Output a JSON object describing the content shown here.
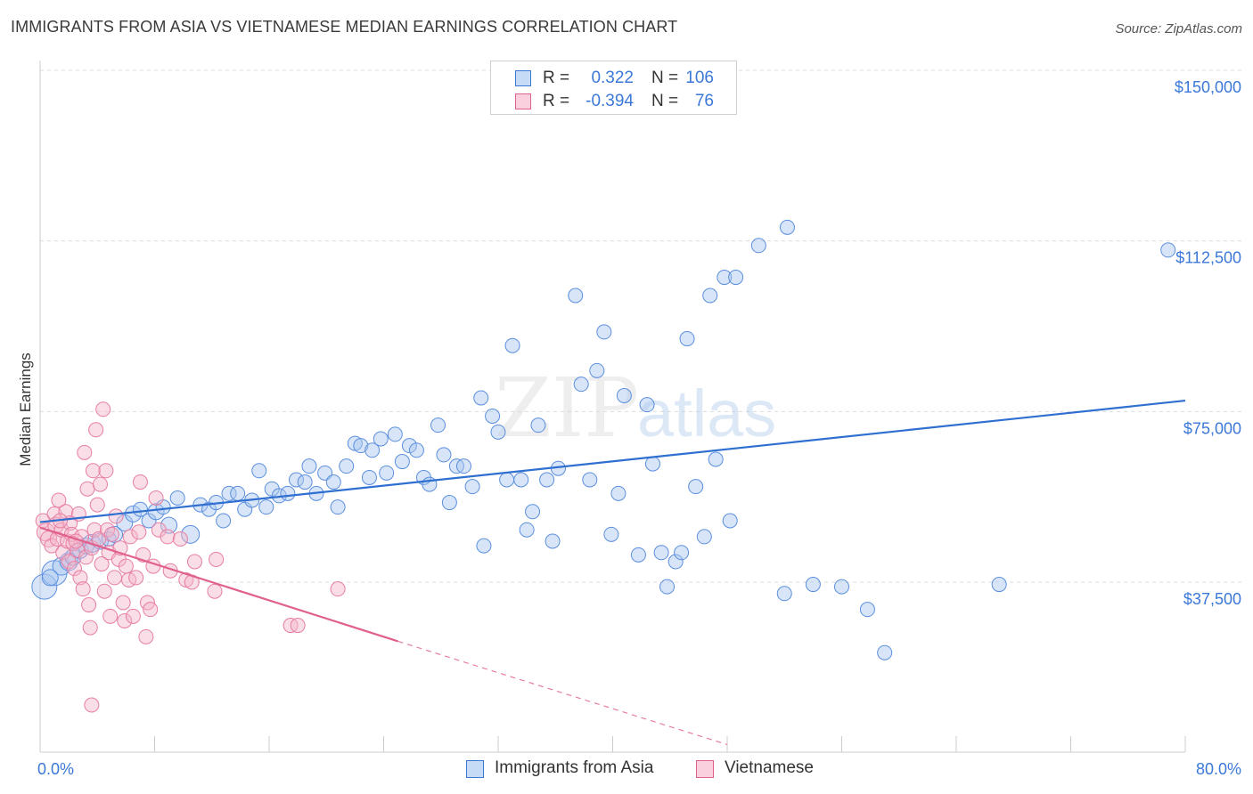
{
  "title": "IMMIGRANTS FROM ASIA VS VIETNAMESE MEDIAN EARNINGS CORRELATION CHART",
  "source": "Source: ZipAtlas.com",
  "watermark": {
    "zip": "ZIP",
    "atlas": "atlas"
  },
  "colors": {
    "blue": "#3b78d8",
    "blue_fill": "#a8c6f0",
    "pink": "#e0608e",
    "pink_fill": "#f5b5c9",
    "grid": "#dddddd",
    "axis_text": "#3b78d8"
  },
  "legend_top": {
    "rows": [
      {
        "series": "Immigrants from Asia",
        "r_label": "R =",
        "r_value": "0.322",
        "n_label": "N =",
        "n_value": "106"
      },
      {
        "series": "Vietnamese",
        "r_label": "R =",
        "r_value": "-0.394",
        "n_label": "N =",
        "n_value": "76"
      }
    ]
  },
  "legend_bottom": [
    "Immigrants from Asia",
    "Vietnamese"
  ],
  "chart_data": {
    "type": "scatter",
    "ylabel": "Median Earnings",
    "xlabel": "",
    "xlim": [
      0,
      80
    ],
    "ylim": [
      0,
      150000
    ],
    "x_tick_labels": [
      "0.0%",
      "80.0%"
    ],
    "y_ticks": [
      37500,
      75000,
      112500,
      150000
    ],
    "y_tick_labels": [
      "$37,500",
      "$75,000",
      "$112,500",
      "$150,000"
    ],
    "grid": true,
    "legend_placement": "top-center and bottom",
    "series": [
      {
        "name": "Immigrants from Asia",
        "color": "#3b78d8",
        "trend": {
          "x": [
            0,
            80
          ],
          "y": [
            50700,
            77400
          ],
          "style": "solid"
        },
        "points": [
          [
            0.3,
            36500,
            14
          ],
          [
            1.0,
            39500,
            14
          ],
          [
            1.5,
            41000,
            10
          ],
          [
            2.0,
            42000,
            10
          ],
          [
            2.3,
            43000,
            9
          ],
          [
            2.8,
            44500,
            9
          ],
          [
            3.2,
            45500,
            9
          ],
          [
            3.6,
            46000,
            10
          ],
          [
            4.2,
            46500,
            9
          ],
          [
            4.8,
            47000,
            8
          ],
          [
            5.2,
            48000,
            9
          ],
          [
            5.9,
            50500,
            9
          ],
          [
            6.5,
            52500,
            9
          ],
          [
            7.0,
            53500,
            8
          ],
          [
            7.6,
            51000,
            8
          ],
          [
            8.1,
            53000,
            9
          ],
          [
            8.6,
            54000,
            8
          ],
          [
            9.0,
            50000,
            9
          ],
          [
            9.6,
            56000,
            8
          ],
          [
            10.5,
            48000,
            10
          ],
          [
            11.2,
            54500,
            8
          ],
          [
            11.8,
            53500,
            8
          ],
          [
            12.3,
            55000,
            8
          ],
          [
            12.8,
            51000,
            8
          ],
          [
            13.2,
            57000,
            8
          ],
          [
            13.8,
            57000,
            8
          ],
          [
            14.3,
            53500,
            8
          ],
          [
            14.8,
            55500,
            8
          ],
          [
            15.3,
            62000,
            8
          ],
          [
            15.8,
            54000,
            8
          ],
          [
            16.2,
            58000,
            8
          ],
          [
            16.7,
            56500,
            8
          ],
          [
            17.3,
            57000,
            8
          ],
          [
            17.9,
            60000,
            8
          ],
          [
            18.5,
            59500,
            8
          ],
          [
            18.8,
            63000,
            8
          ],
          [
            19.3,
            57000,
            8
          ],
          [
            19.9,
            61500,
            8
          ],
          [
            20.5,
            59500,
            8
          ],
          [
            20.8,
            54000,
            8
          ],
          [
            21.4,
            63000,
            8
          ],
          [
            22.0,
            68000,
            8
          ],
          [
            22.4,
            67500,
            8
          ],
          [
            23.0,
            60500,
            8
          ],
          [
            23.2,
            66500,
            8
          ],
          [
            23.8,
            69000,
            8
          ],
          [
            24.2,
            61500,
            8
          ],
          [
            24.8,
            70000,
            8
          ],
          [
            25.3,
            64000,
            8
          ],
          [
            25.8,
            67500,
            8
          ],
          [
            26.3,
            66500,
            8
          ],
          [
            26.8,
            60500,
            8
          ],
          [
            27.2,
            59000,
            8
          ],
          [
            27.8,
            72000,
            8
          ],
          [
            28.2,
            65500,
            8
          ],
          [
            28.6,
            55000,
            8
          ],
          [
            29.1,
            63000,
            8
          ],
          [
            29.6,
            63000,
            8
          ],
          [
            30.2,
            58500,
            8
          ],
          [
            30.8,
            78000,
            8
          ],
          [
            31.0,
            45500,
            8
          ],
          [
            31.6,
            74000,
            8
          ],
          [
            32.0,
            70500,
            8
          ],
          [
            32.6,
            60000,
            8
          ],
          [
            33.0,
            89500,
            8
          ],
          [
            33.6,
            60000,
            8
          ],
          [
            34.0,
            49000,
            8
          ],
          [
            34.4,
            53000,
            8
          ],
          [
            34.8,
            72000,
            8
          ],
          [
            35.4,
            60000,
            8
          ],
          [
            35.8,
            46500,
            8
          ],
          [
            36.2,
            62500,
            8
          ],
          [
            37.4,
            100500,
            8
          ],
          [
            37.8,
            81000,
            8
          ],
          [
            38.4,
            60000,
            8
          ],
          [
            38.9,
            84000,
            8
          ],
          [
            39.4,
            92500,
            8
          ],
          [
            39.9,
            48000,
            8
          ],
          [
            40.4,
            57000,
            8
          ],
          [
            40.8,
            78500,
            8
          ],
          [
            41.8,
            43500,
            8
          ],
          [
            42.4,
            76500,
            8
          ],
          [
            42.8,
            63500,
            8
          ],
          [
            43.4,
            44000,
            8
          ],
          [
            43.8,
            36500,
            8
          ],
          [
            44.4,
            42000,
            8
          ],
          [
            44.8,
            44000,
            8
          ],
          [
            45.2,
            91000,
            8
          ],
          [
            45.8,
            58500,
            8
          ],
          [
            46.4,
            47500,
            8
          ],
          [
            46.8,
            100500,
            8
          ],
          [
            47.2,
            64500,
            8
          ],
          [
            47.8,
            104500,
            8
          ],
          [
            48.2,
            51000,
            8
          ],
          [
            48.6,
            104500,
            8
          ],
          [
            50.2,
            111500,
            8
          ],
          [
            52.0,
            35000,
            8
          ],
          [
            52.2,
            115500,
            8
          ],
          [
            54.0,
            37000,
            8
          ],
          [
            56.0,
            36500,
            8
          ],
          [
            57.8,
            31500,
            8
          ],
          [
            59.0,
            22000,
            8
          ],
          [
            67.0,
            37000,
            8
          ],
          [
            78.8,
            110500,
            8
          ],
          [
            0.7,
            38500,
            9
          ]
        ]
      },
      {
        "name": "Vietnamese",
        "color": "#e0608e",
        "trend": {
          "x": [
            0,
            25
          ],
          "y": [
            49500,
            24500
          ],
          "style": "solid",
          "dashed_to": {
            "x": 48,
            "y": 1800
          }
        },
        "points": [
          [
            0.2,
            51000,
            8
          ],
          [
            0.4,
            48500,
            10
          ],
          [
            0.6,
            47000,
            9
          ],
          [
            0.8,
            45500,
            8
          ],
          [
            1.0,
            52500,
            8
          ],
          [
            1.1,
            50000,
            9
          ],
          [
            1.2,
            47000,
            8
          ],
          [
            1.3,
            55500,
            8
          ],
          [
            1.5,
            49000,
            8
          ],
          [
            1.6,
            44000,
            8
          ],
          [
            1.8,
            53000,
            8
          ],
          [
            1.9,
            46500,
            8
          ],
          [
            2.0,
            42000,
            8
          ],
          [
            2.1,
            50500,
            8
          ],
          [
            2.2,
            48000,
            8
          ],
          [
            2.3,
            46000,
            8
          ],
          [
            2.4,
            40500,
            8
          ],
          [
            2.6,
            44500,
            8
          ],
          [
            2.7,
            52500,
            8
          ],
          [
            2.8,
            38500,
            8
          ],
          [
            2.9,
            47500,
            8
          ],
          [
            3.0,
            36000,
            8
          ],
          [
            3.1,
            66000,
            8
          ],
          [
            3.2,
            43000,
            8
          ],
          [
            3.3,
            58000,
            8
          ],
          [
            3.4,
            32500,
            8
          ],
          [
            3.5,
            27500,
            8
          ],
          [
            3.6,
            45000,
            8
          ],
          [
            3.7,
            62000,
            8
          ],
          [
            3.8,
            49000,
            8
          ],
          [
            3.9,
            71000,
            8
          ],
          [
            4.0,
            54500,
            8
          ],
          [
            4.1,
            47000,
            8
          ],
          [
            4.2,
            59000,
            8
          ],
          [
            4.3,
            41500,
            8
          ],
          [
            4.4,
            75500,
            8
          ],
          [
            4.5,
            35500,
            8
          ],
          [
            4.6,
            62000,
            8
          ],
          [
            4.7,
            49000,
            8
          ],
          [
            4.8,
            44000,
            8
          ],
          [
            4.9,
            30000,
            8
          ],
          [
            5.0,
            48000,
            8
          ],
          [
            5.2,
            38500,
            8
          ],
          [
            5.3,
            52000,
            8
          ],
          [
            5.5,
            42500,
            8
          ],
          [
            5.6,
            45000,
            8
          ],
          [
            5.8,
            33000,
            8
          ],
          [
            5.9,
            29000,
            8
          ],
          [
            6.0,
            41000,
            8
          ],
          [
            6.2,
            38000,
            8
          ],
          [
            6.3,
            47500,
            8
          ],
          [
            6.5,
            30000,
            8
          ],
          [
            6.7,
            38500,
            8
          ],
          [
            6.9,
            48500,
            8
          ],
          [
            7.0,
            59500,
            8
          ],
          [
            7.2,
            43500,
            8
          ],
          [
            7.4,
            25500,
            8
          ],
          [
            7.5,
            33000,
            8
          ],
          [
            7.7,
            31500,
            8
          ],
          [
            7.9,
            41000,
            8
          ],
          [
            8.1,
            56000,
            8
          ],
          [
            8.3,
            49000,
            8
          ],
          [
            8.9,
            47500,
            8
          ],
          [
            9.1,
            40000,
            8
          ],
          [
            9.8,
            47000,
            8
          ],
          [
            10.2,
            38000,
            8
          ],
          [
            10.6,
            37500,
            8
          ],
          [
            10.8,
            42000,
            8
          ],
          [
            12.2,
            35500,
            8
          ],
          [
            12.3,
            42500,
            8
          ],
          [
            17.5,
            28000,
            8
          ],
          [
            18.0,
            28000,
            8
          ],
          [
            20.8,
            36000,
            8
          ],
          [
            3.6,
            10500,
            8
          ],
          [
            1.4,
            51000,
            8
          ],
          [
            2.5,
            46500,
            8
          ]
        ]
      }
    ]
  }
}
